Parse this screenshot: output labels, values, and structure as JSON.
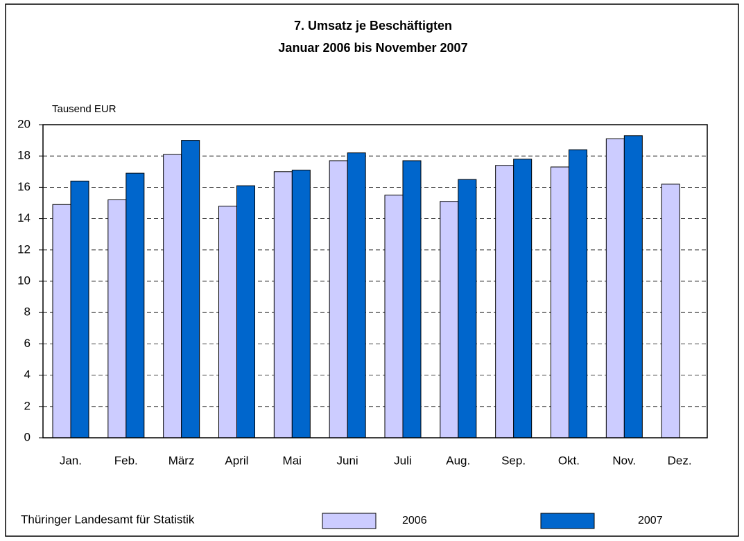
{
  "chart_data": {
    "type": "bar",
    "title": "7. Umsatz je Beschäftigten",
    "subtitle": "Januar 2006 bis November 2007",
    "y_label": "Tausend EUR",
    "source": "Thüringer Landesamt für Statistik",
    "categories": [
      "Jan.",
      "Feb.",
      "März",
      "April",
      "Mai",
      "Juni",
      "Juli",
      "Aug.",
      "Sep.",
      "Okt.",
      "Nov.",
      "Dez."
    ],
    "series": [
      {
        "name": "2006",
        "color": "#ccccff",
        "values": [
          14.9,
          15.2,
          18.1,
          14.8,
          17.0,
          17.7,
          15.5,
          15.1,
          17.4,
          17.3,
          19.1,
          16.2
        ]
      },
      {
        "name": "2007",
        "color": "#0066cc",
        "values": [
          16.4,
          16.9,
          19.0,
          16.1,
          17.1,
          18.2,
          17.7,
          16.5,
          17.8,
          18.4,
          19.3,
          null
        ]
      }
    ],
    "ylim": [
      0,
      20
    ],
    "yticks": [
      0,
      2,
      4,
      6,
      8,
      10,
      12,
      14,
      16,
      18,
      20
    ],
    "grid": true,
    "legend": "bottom"
  }
}
